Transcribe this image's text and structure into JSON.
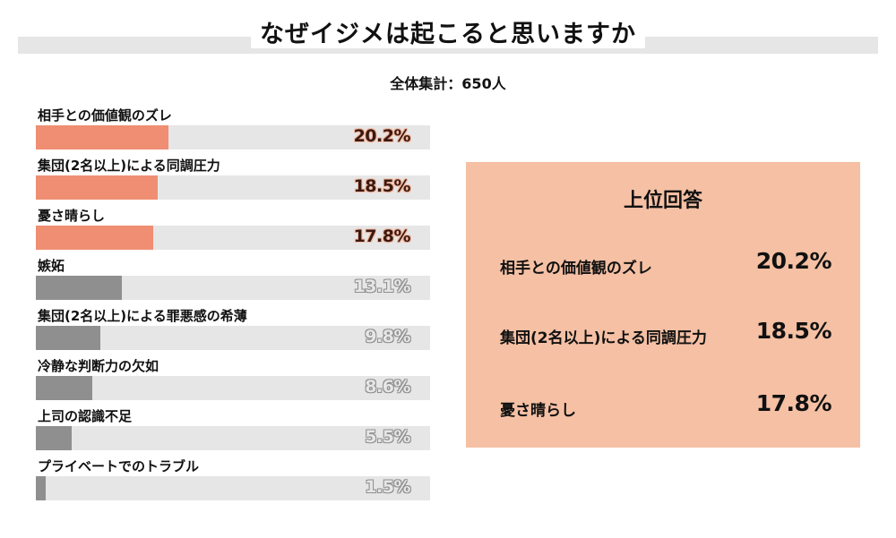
{
  "title": "なぜイジメは起こると思いますか",
  "total": "全体集計：650人",
  "colors": {
    "highlight": "#ef8e72",
    "gray": "#8f8f8f",
    "track": "#e6e6e6",
    "panel": "#f5c0a4"
  },
  "chart_data": {
    "type": "bar",
    "orientation": "horizontal",
    "categories": [
      "相手との価値観のズレ",
      "集団(2名以上)による同調圧力",
      "憂さ晴らし",
      "嫉妬",
      "集団(2名以上)による罪悪感の希薄",
      "冷静な判断力の欠如",
      "上司の認識不足",
      "プライベートでのトラブル"
    ],
    "values": [
      20.2,
      18.5,
      17.8,
      13.1,
      9.8,
      8.6,
      5.5,
      1.5
    ],
    "value_labels": [
      "20.2%",
      "18.5%",
      "17.8%",
      "13.1%",
      "9.8%",
      "8.6%",
      "5.5%",
      "1.5%"
    ],
    "highlighted": [
      true,
      true,
      true,
      false,
      false,
      false,
      false,
      false
    ],
    "xlim": [
      0,
      60
    ],
    "grid": false
  },
  "top_panel": {
    "title": "上位回答",
    "items": [
      {
        "label": "相手との価値観のズレ",
        "value": "20.2%"
      },
      {
        "label": "集団(2名以上)による同調圧力",
        "value": "18.5%"
      },
      {
        "label": "憂さ晴らし",
        "value": "17.8%"
      }
    ]
  }
}
